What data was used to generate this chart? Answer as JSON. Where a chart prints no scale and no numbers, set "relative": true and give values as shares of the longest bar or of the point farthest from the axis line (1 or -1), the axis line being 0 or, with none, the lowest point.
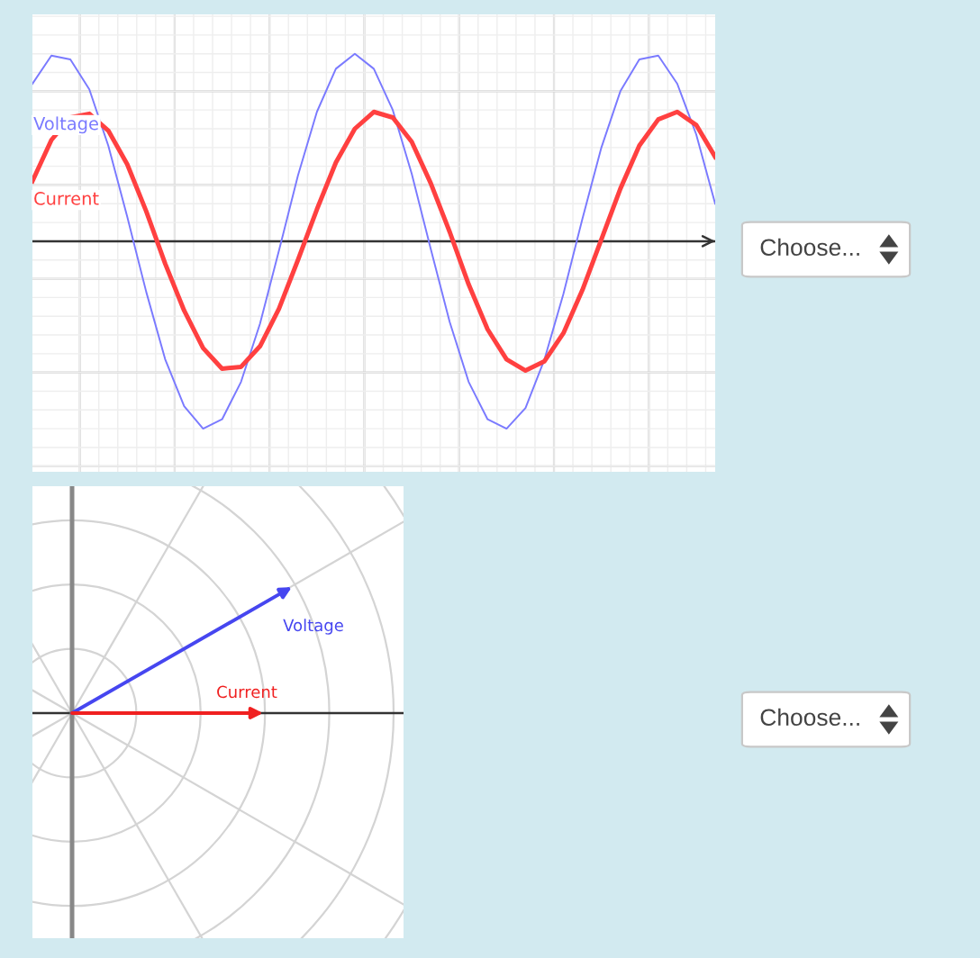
{
  "chart_data": [
    {
      "type": "line",
      "relative": true,
      "grid": true,
      "legend": false,
      "marker": "none",
      "line_style": "solid",
      "categories": [
        null,
        null,
        null,
        null,
        null,
        null,
        null,
        null,
        null,
        null,
        null,
        null,
        null,
        null,
        null,
        null,
        null,
        null,
        null,
        null,
        null,
        null,
        null,
        null,
        null,
        null,
        null,
        null,
        null,
        null,
        null,
        null,
        null,
        null,
        null,
        null,
        null
      ],
      "series": [
        {
          "name": "Voltage",
          "color": "#7a7aff",
          "values": [
            0.84,
            0.99,
            0.97,
            0.81,
            0.51,
            0.13,
            -0.27,
            -0.63,
            -0.88,
            -1.0,
            -0.95,
            -0.75,
            -0.44,
            -0.05,
            0.35,
            0.69,
            0.92,
            1.0,
            0.92,
            0.7,
            0.36,
            -0.04,
            -0.43,
            -0.75,
            -0.95,
            -1.0,
            -0.89,
            -0.63,
            -0.28,
            0.12,
            0.5,
            0.8,
            0.97,
            0.99,
            0.84,
            0.57,
            0.2
          ]
        },
        {
          "name": "Current",
          "color": "#ff4040",
          "values": [
            0.32,
            0.54,
            0.66,
            0.68,
            0.59,
            0.41,
            0.16,
            -0.12,
            -0.37,
            -0.57,
            -0.68,
            -0.67,
            -0.56,
            -0.36,
            -0.1,
            0.17,
            0.42,
            0.6,
            0.69,
            0.66,
            0.53,
            0.31,
            0.05,
            -0.23,
            -0.47,
            -0.63,
            -0.69,
            -0.64,
            -0.49,
            -0.26,
            0.01,
            0.28,
            0.51,
            0.65,
            0.69,
            0.62,
            0.45
          ]
        }
      ]
    },
    {
      "type": "other",
      "annotations": [
        "Choose..."
      ]
    },
    {
      "type": "other",
      "annotations": [
        "Voltage",
        "Current"
      ]
    },
    {
      "type": "other",
      "annotations": [
        "Choose..."
      ]
    }
  ]
}
